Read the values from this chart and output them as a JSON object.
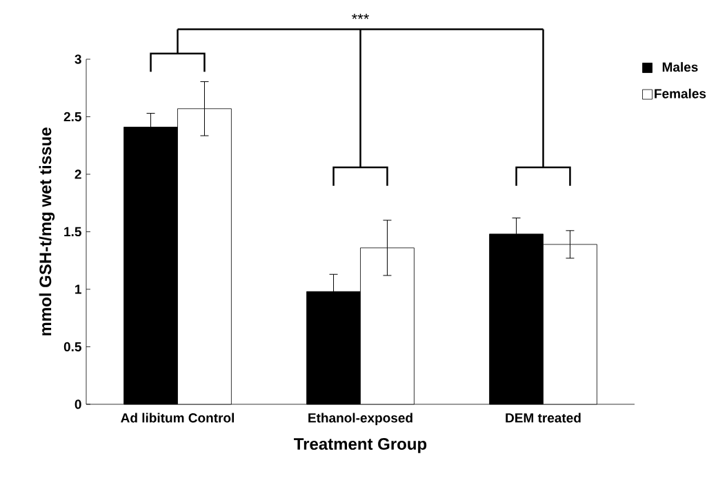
{
  "chart_data": {
    "type": "bar",
    "xlabel": "Treatment Group",
    "ylabel": "mmol GSH-t/mg wet tissue",
    "categories": [
      "Ad libitum Control",
      "Ethanol-exposed",
      "DEM treated"
    ],
    "series": [
      {
        "name": "Males",
        "color": "#000000",
        "values": [
          2.41,
          0.98,
          1.48
        ],
        "errors": [
          0.12,
          0.15,
          0.14
        ]
      },
      {
        "name": "Females",
        "color": "#ffffff",
        "values": [
          2.57,
          1.36,
          1.39
        ],
        "errors": [
          0.235,
          0.24,
          0.12
        ]
      }
    ],
    "ylim": [
      0,
      3
    ],
    "yticks": [
      0,
      0.5,
      1,
      1.5,
      2,
      2.5,
      3
    ],
    "legend": "top right",
    "annotations": [
      "***"
    ]
  }
}
